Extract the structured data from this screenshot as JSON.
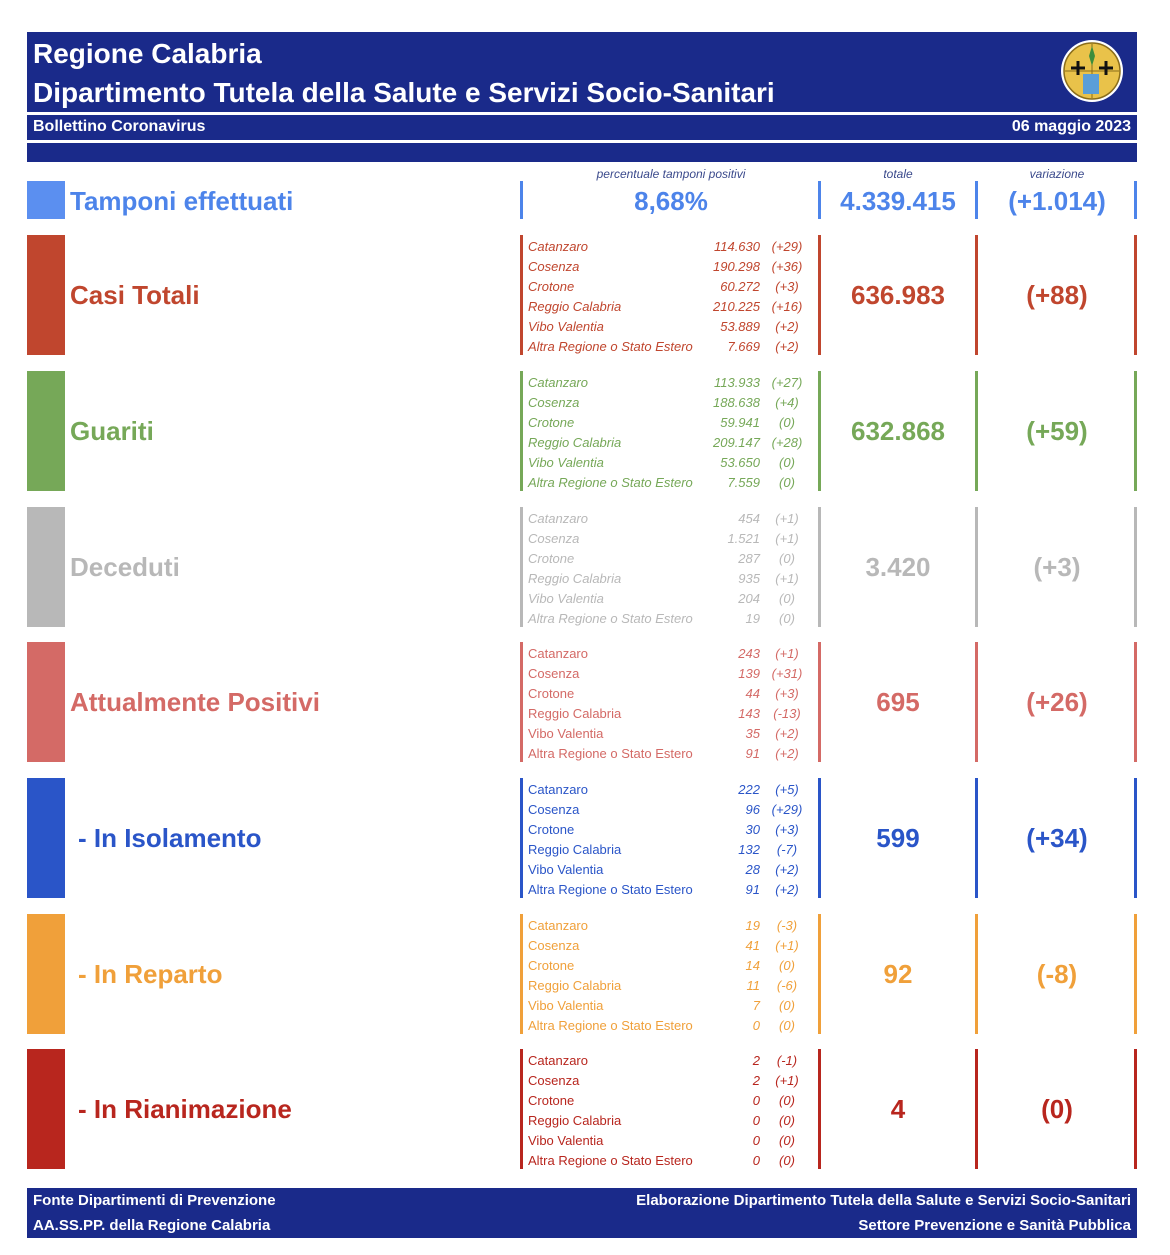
{
  "header": {
    "title1": "Regione Calabria",
    "title2": "Dipartimento Tutela della Salute e Servizi Socio-Sanitari",
    "subtitle": "Bollettino Coronavirus",
    "date": "06 maggio 2023"
  },
  "columns": {
    "pct_label": "percentuale tamponi positivi",
    "total_label": "totale",
    "var_label": "variazione"
  },
  "tamponi": {
    "label": "Tamponi effettuati",
    "pct": "8,68%",
    "total": "4.339.415",
    "variation": "(+1.014)",
    "color": "#4d84ea"
  },
  "categories": [
    {
      "label": "Casi Totali",
      "total": "636.983",
      "variation": "(+88)",
      "color": "#c0462e",
      "italic": true,
      "rows": [
        {
          "name": "Catanzaro",
          "value": "114.630",
          "delta": "(+29)"
        },
        {
          "name": "Cosenza",
          "value": "190.298",
          "delta": "(+36)"
        },
        {
          "name": "Crotone",
          "value": "60.272",
          "delta": "(+3)"
        },
        {
          "name": "Reggio Calabria",
          "value": "210.225",
          "delta": "(+16)"
        },
        {
          "name": "Vibo Valentia",
          "value": "53.889",
          "delta": "(+2)"
        },
        {
          "name": "Altra Regione o Stato Estero",
          "value": "7.669",
          "delta": "(+2)"
        }
      ]
    },
    {
      "label": "Guariti",
      "total": "632.868",
      "variation": "(+59)",
      "color": "#76a858",
      "italic": true,
      "rows": [
        {
          "name": "Catanzaro",
          "value": "113.933",
          "delta": "(+27)"
        },
        {
          "name": "Cosenza",
          "value": "188.638",
          "delta": "(+4)"
        },
        {
          "name": "Crotone",
          "value": "59.941",
          "delta": "(0)"
        },
        {
          "name": "Reggio Calabria",
          "value": "209.147",
          "delta": "(+28)"
        },
        {
          "name": "Vibo Valentia",
          "value": "53.650",
          "delta": "(0)"
        },
        {
          "name": "Altra Regione o Stato Estero",
          "value": "7.559",
          "delta": "(0)"
        }
      ]
    },
    {
      "label": "Deceduti",
      "total": "3.420",
      "variation": "(+3)",
      "color": "#b8b8b8",
      "italic": true,
      "rows": [
        {
          "name": "Catanzaro",
          "value": "454",
          "delta": "(+1)"
        },
        {
          "name": "Cosenza",
          "value": "1.521",
          "delta": "(+1)"
        },
        {
          "name": "Crotone",
          "value": "287",
          "delta": "(0)"
        },
        {
          "name": "Reggio Calabria",
          "value": "935",
          "delta": "(+1)"
        },
        {
          "name": "Vibo Valentia",
          "value": "204",
          "delta": "(0)"
        },
        {
          "name": "Altra Regione o Stato Estero",
          "value": "19",
          "delta": "(0)"
        }
      ]
    },
    {
      "label": "Attualmente Positivi",
      "total": "695",
      "variation": "(+26)",
      "color": "#d46a66",
      "italic": false,
      "rows": [
        {
          "name": "Catanzaro",
          "value": "243",
          "delta": "(+1)"
        },
        {
          "name": "Cosenza",
          "value": "139",
          "delta": "(+31)"
        },
        {
          "name": "Crotone",
          "value": "44",
          "delta": "(+3)"
        },
        {
          "name": "Reggio Calabria",
          "value": "143",
          "delta": "(-13)"
        },
        {
          "name": "Vibo Valentia",
          "value": "35",
          "delta": "(+2)"
        },
        {
          "name": "Altra Regione o Stato Estero",
          "value": "91",
          "delta": "(+2)"
        }
      ]
    },
    {
      "label": "- In Isolamento",
      "total": "599",
      "variation": "(+34)",
      "color": "#2a55c8",
      "italic": false,
      "rows": [
        {
          "name": "Catanzaro",
          "value": "222",
          "delta": "(+5)"
        },
        {
          "name": "Cosenza",
          "value": "96",
          "delta": "(+29)"
        },
        {
          "name": "Crotone",
          "value": "30",
          "delta": "(+3)"
        },
        {
          "name": "Reggio Calabria",
          "value": "132",
          "delta": "(-7)"
        },
        {
          "name": "Vibo Valentia",
          "value": "28",
          "delta": "(+2)"
        },
        {
          "name": "Altra Regione o Stato Estero",
          "value": "91",
          "delta": "(+2)"
        }
      ]
    },
    {
      "label": "- In Reparto",
      "total": "92",
      "variation": "(-8)",
      "color": "#f0a03a",
      "italic": false,
      "rows": [
        {
          "name": "Catanzaro",
          "value": "19",
          "delta": "(-3)"
        },
        {
          "name": "Cosenza",
          "value": "41",
          "delta": "(+1)"
        },
        {
          "name": "Crotone",
          "value": "14",
          "delta": "(0)"
        },
        {
          "name": "Reggio Calabria",
          "value": "11",
          "delta": "(-6)"
        },
        {
          "name": "Vibo Valentia",
          "value": "7",
          "delta": "(0)"
        },
        {
          "name": "Altra Regione o Stato Estero",
          "value": "0",
          "delta": "(0)"
        }
      ]
    },
    {
      "label": "- In Rianimazione",
      "total": "4",
      "variation": "(0)",
      "color": "#b8261e",
      "italic": false,
      "rows": [
        {
          "name": "Catanzaro",
          "value": "2",
          "delta": "(-1)"
        },
        {
          "name": "Cosenza",
          "value": "2",
          "delta": "(+1)"
        },
        {
          "name": "Crotone",
          "value": "0",
          "delta": "(0)"
        },
        {
          "name": "Reggio Calabria",
          "value": "0",
          "delta": "(0)"
        },
        {
          "name": "Vibo Valentia",
          "value": "0",
          "delta": "(0)"
        },
        {
          "name": "Altra Regione o Stato Estero",
          "value": "0",
          "delta": "(0)"
        }
      ]
    }
  ],
  "footer": {
    "left1": "Fonte Dipartimenti di Prevenzione",
    "left2": "AA.SS.PP.  della Regione Calabria",
    "right1": "Elaborazione Dipartimento Tutela della Salute e Servizi Socio-Sanitari",
    "right2": "Settore Prevenzione e Sanità Pubblica"
  },
  "logo": {
    "icon": "calabria-coat-of-arms-icon"
  }
}
